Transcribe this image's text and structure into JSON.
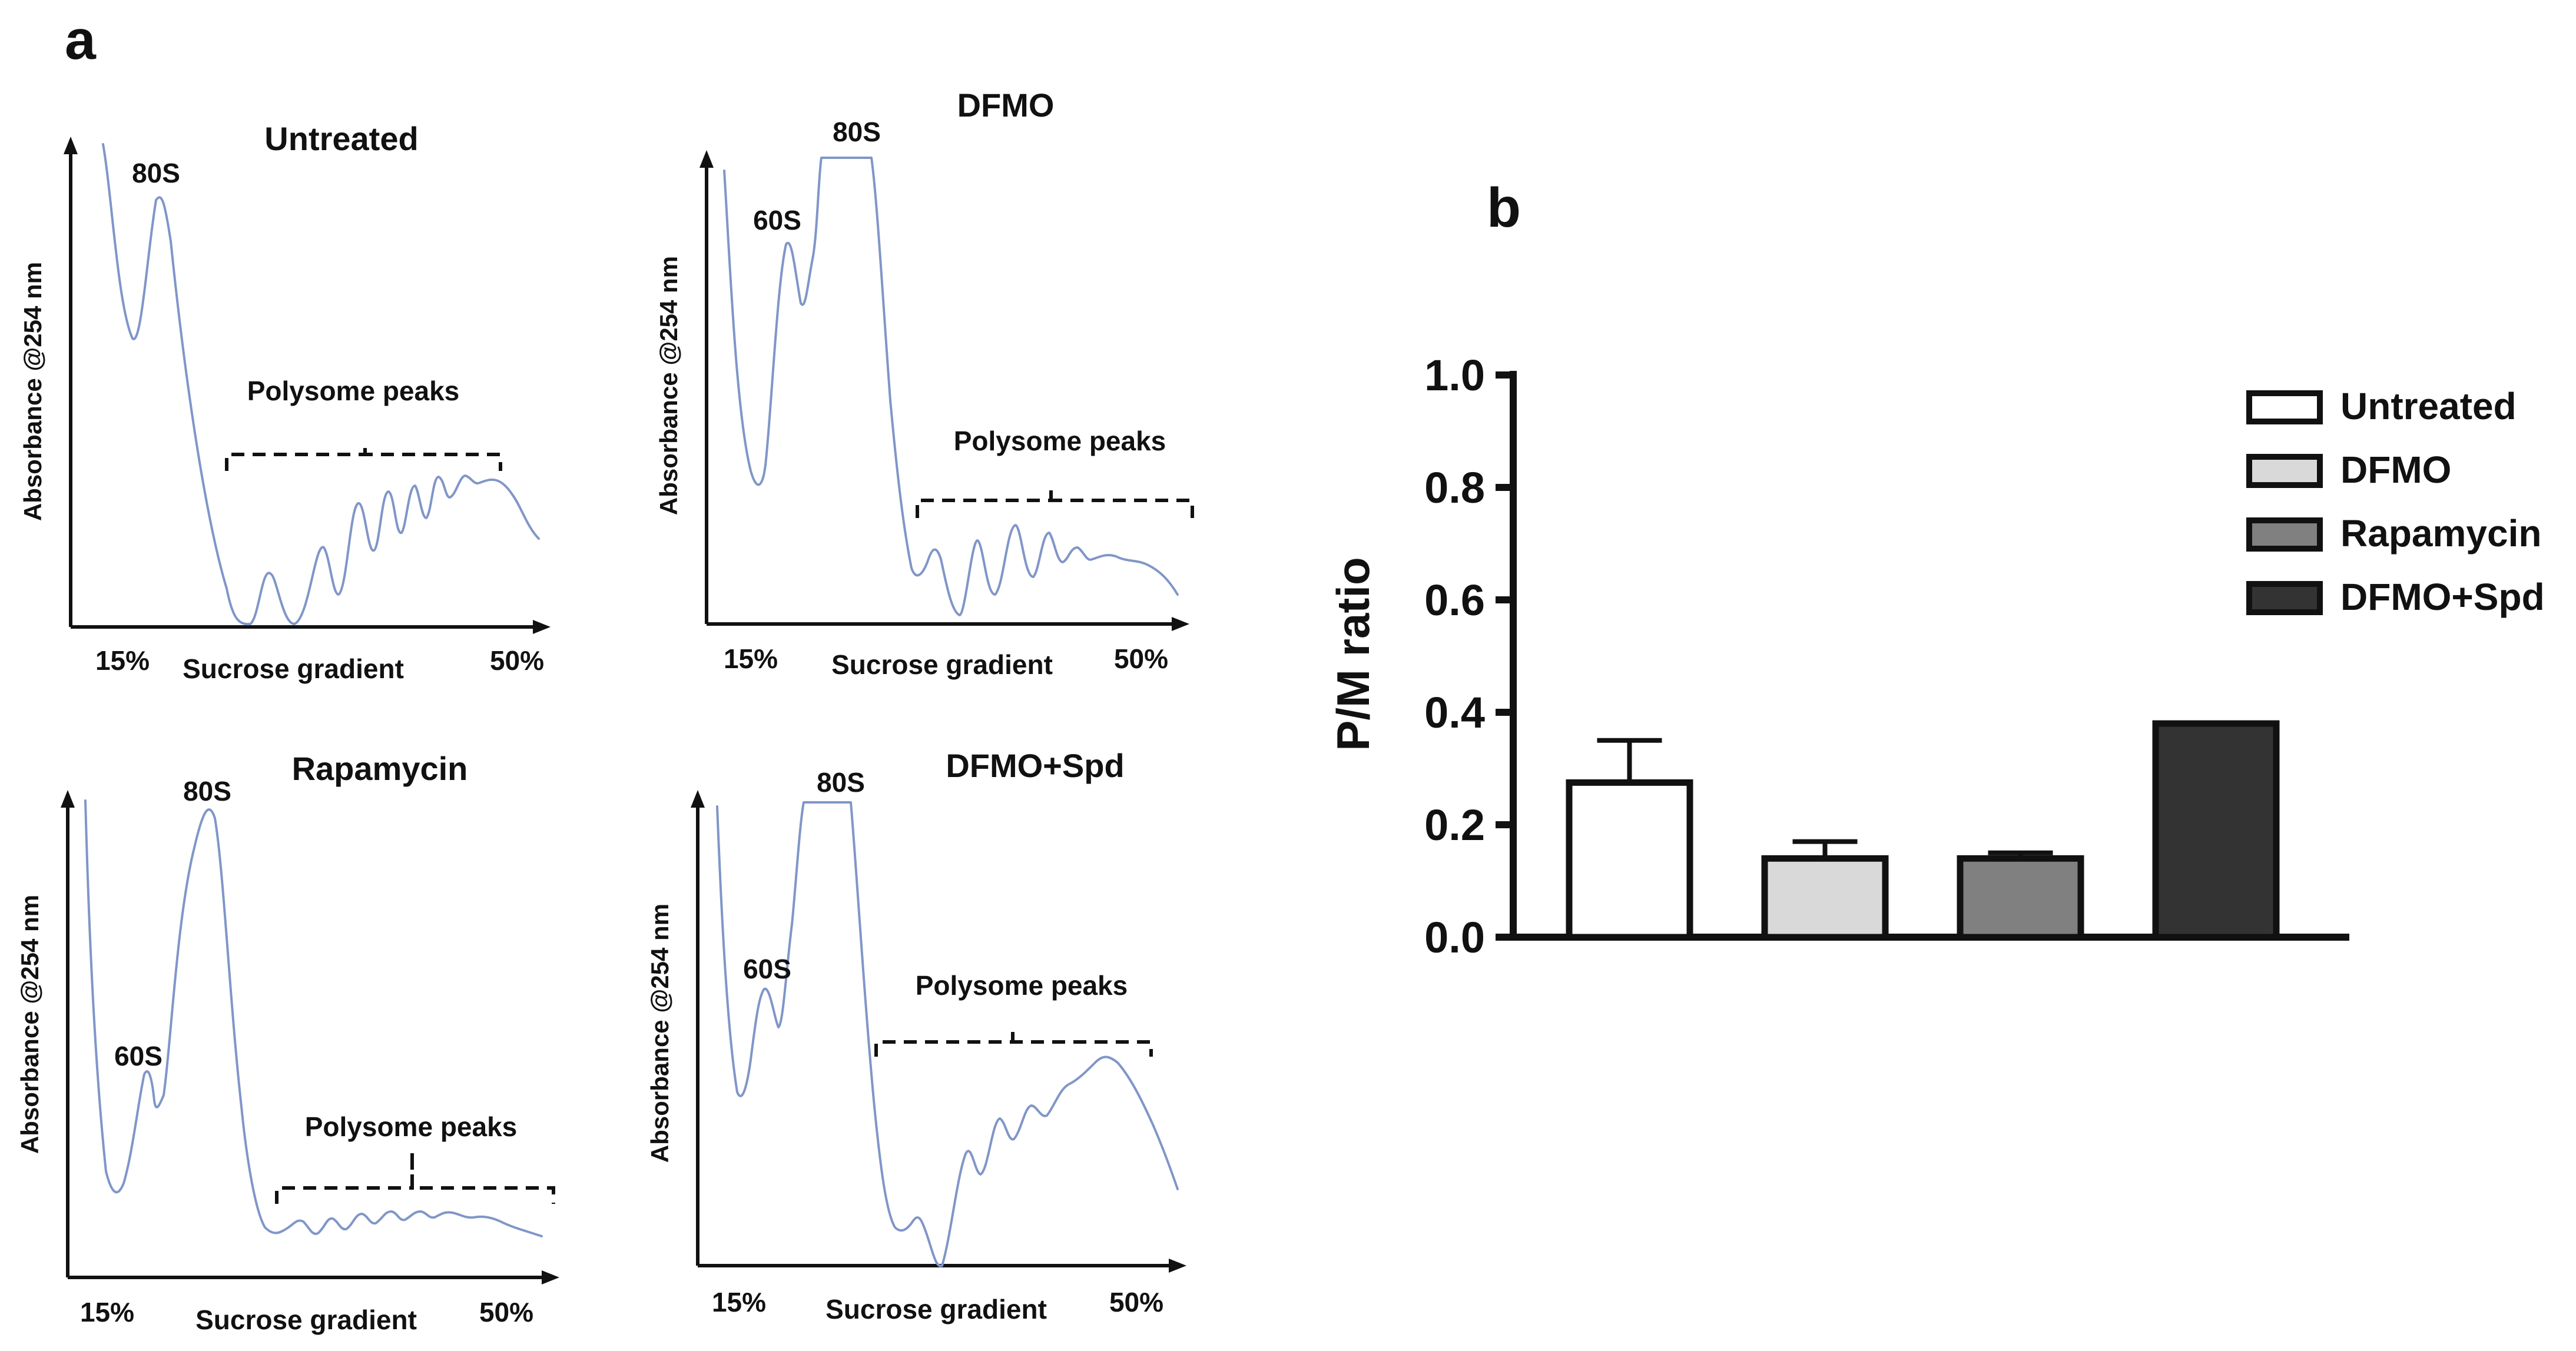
{
  "panel_labels": {
    "a": "a",
    "b": "b"
  },
  "profiles": {
    "y_axis_label": "Absorbance @254 nm",
    "x_axis_label": "Sucrose gradient",
    "x_start_label": "15%",
    "x_end_label": "50%",
    "polysome_label": "Polysome peaks",
    "trace_color": "#8096c8",
    "panels": [
      {
        "key": "untreated",
        "title": "Untreated",
        "peaks": {
          "p80": "80S"
        }
      },
      {
        "key": "dfmo",
        "title": "DFMO",
        "peaks": {
          "p60": "60S",
          "p80": "80S"
        }
      },
      {
        "key": "rapamycin",
        "title": "Rapamycin",
        "peaks": {
          "p60": "60S",
          "p80": "80S"
        }
      },
      {
        "key": "dfmo_spd",
        "title": "DFMO+Spd",
        "peaks": {
          "p60": "60S",
          "p80": "80S"
        }
      }
    ]
  },
  "chart_data": {
    "type": "bar",
    "title": "",
    "xlabel": "",
    "ylabel": "P/M ratio",
    "ylim": [
      0.0,
      1.0
    ],
    "yticks": [
      "0.0",
      "0.2",
      "0.4",
      "0.6",
      "0.8",
      "1.0"
    ],
    "categories": [
      "Untreated",
      "DFMO",
      "Rapamycin",
      "DFMO+Spd"
    ],
    "values": [
      0.275,
      0.14,
      0.14,
      0.38
    ],
    "errors": [
      0.075,
      0.03,
      0.01,
      0
    ],
    "colors": [
      "#ffffff",
      "#d9d9d9",
      "#808080",
      "#333333"
    ],
    "legend": [
      "Untreated",
      "DFMO",
      "Rapamycin",
      "DFMO+Spd"
    ],
    "legend_position": "top-right"
  }
}
